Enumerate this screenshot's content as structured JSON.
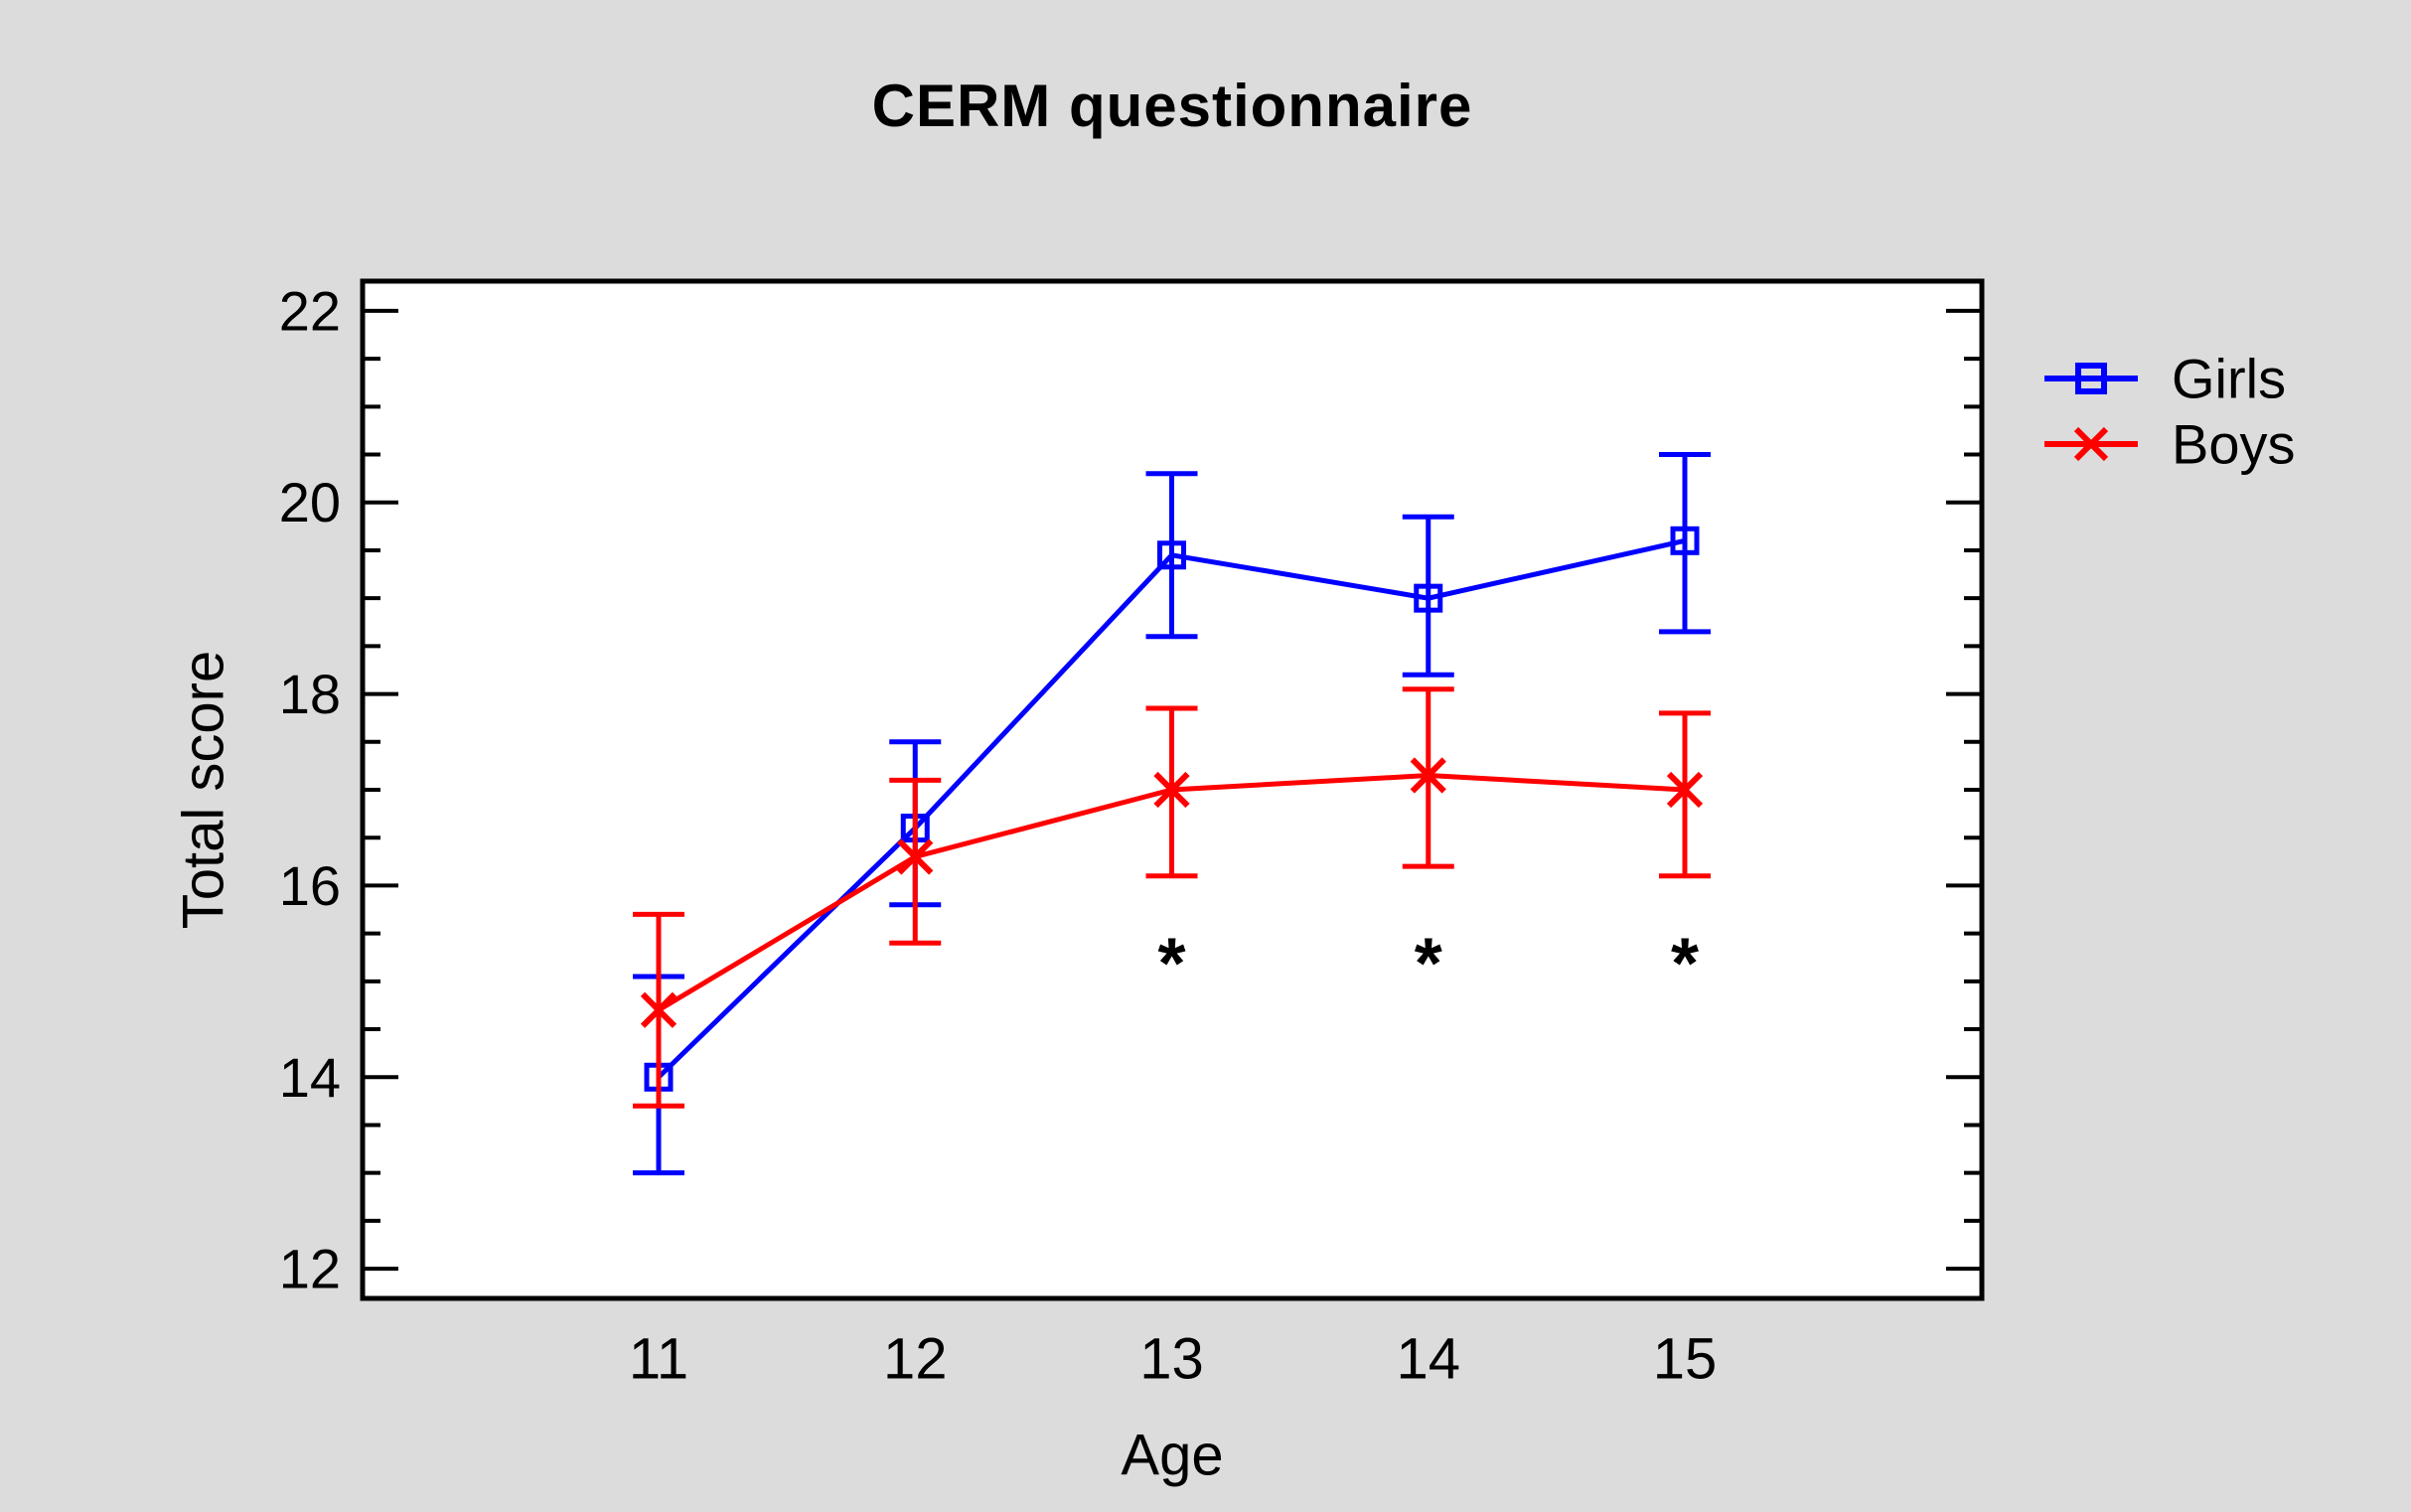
{
  "title": "CERM questionnaire",
  "colors": {
    "background": "#dcdcdc",
    "plot_background": "#ffffff",
    "frame": "#000000",
    "text": "#000000",
    "girls": "#0000ff",
    "boys": "#ff0000"
  },
  "chart_data": {
    "type": "line",
    "title": "CERM questionnaire",
    "xlabel": "Age",
    "ylabel": "Total score",
    "x": [
      "11",
      "12",
      "13",
      "14",
      "15"
    ],
    "ylim": [
      11.69,
      22.31
    ],
    "yticks_major": [
      "12",
      "14",
      "16",
      "18",
      "20",
      "22"
    ],
    "ytick_minor_step": 0.5,
    "grid": false,
    "legend_position": "top-right-outside",
    "series": [
      {
        "name": "Girls",
        "color": "#0000ff",
        "marker": "square",
        "values": [
          14.0,
          16.6,
          19.45,
          19.0,
          19.6
        ],
        "err_low": [
          13.0,
          15.8,
          18.6,
          18.2,
          18.65
        ],
        "err_high": [
          15.05,
          17.5,
          20.3,
          19.85,
          20.5
        ]
      },
      {
        "name": "Boys",
        "color": "#ff0000",
        "marker": "x",
        "values": [
          14.7,
          16.3,
          17.0,
          17.15,
          17.0
        ],
        "err_low": [
          13.7,
          15.4,
          16.1,
          16.2,
          16.1
        ],
        "err_high": [
          15.7,
          17.1,
          17.85,
          18.05,
          17.8
        ]
      }
    ],
    "annotations": [
      {
        "symbol": "*",
        "x_index": 2,
        "y": 15.25
      },
      {
        "symbol": "*",
        "x_index": 3,
        "y": 15.25
      },
      {
        "symbol": "*",
        "x_index": 4,
        "y": 15.25
      }
    ]
  }
}
